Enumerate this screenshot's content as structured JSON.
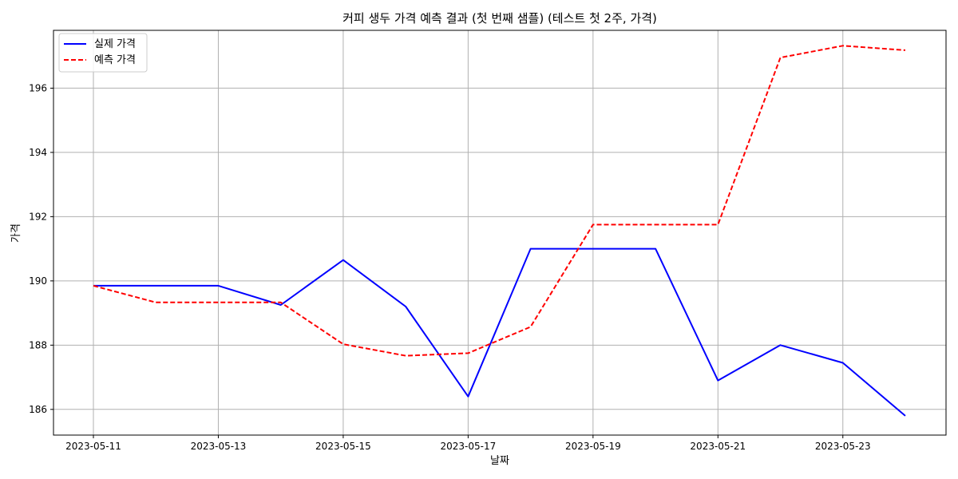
{
  "chart_data": {
    "type": "line",
    "title": "커피 생두 가격 예측 결과 (첫 번째 샘플) (테스트 첫 2주, 가격)",
    "xlabel": "날짜",
    "ylabel": "가격",
    "x": [
      "2023-05-11",
      "2023-05-12",
      "2023-05-13",
      "2023-05-14",
      "2023-05-15",
      "2023-05-16",
      "2023-05-17",
      "2023-05-18",
      "2023-05-19",
      "2023-05-20",
      "2023-05-21",
      "2023-05-22",
      "2023-05-23",
      "2023-05-24"
    ],
    "x_ticks": [
      "2023-05-11",
      "2023-05-13",
      "2023-05-15",
      "2023-05-17",
      "2023-05-19",
      "2023-05-21",
      "2023-05-23"
    ],
    "y_ticks": [
      186,
      188,
      190,
      192,
      194,
      196
    ],
    "ylim": [
      185.2,
      197.8
    ],
    "grid": true,
    "legend_position": "top-left",
    "series": [
      {
        "name": "실제 가격",
        "color": "#0000ff",
        "style": "solid",
        "values": [
          189.85,
          189.85,
          189.85,
          189.25,
          190.65,
          189.2,
          186.4,
          191.0,
          191.0,
          191.0,
          186.9,
          188.0,
          187.45,
          185.8
        ]
      },
      {
        "name": "예측 가격",
        "color": "#ff0000",
        "style": "dashed",
        "values": [
          189.85,
          189.33,
          189.33,
          189.33,
          188.03,
          187.67,
          187.75,
          188.57,
          191.75,
          191.75,
          191.75,
          196.95,
          197.32,
          197.18
        ]
      }
    ]
  }
}
